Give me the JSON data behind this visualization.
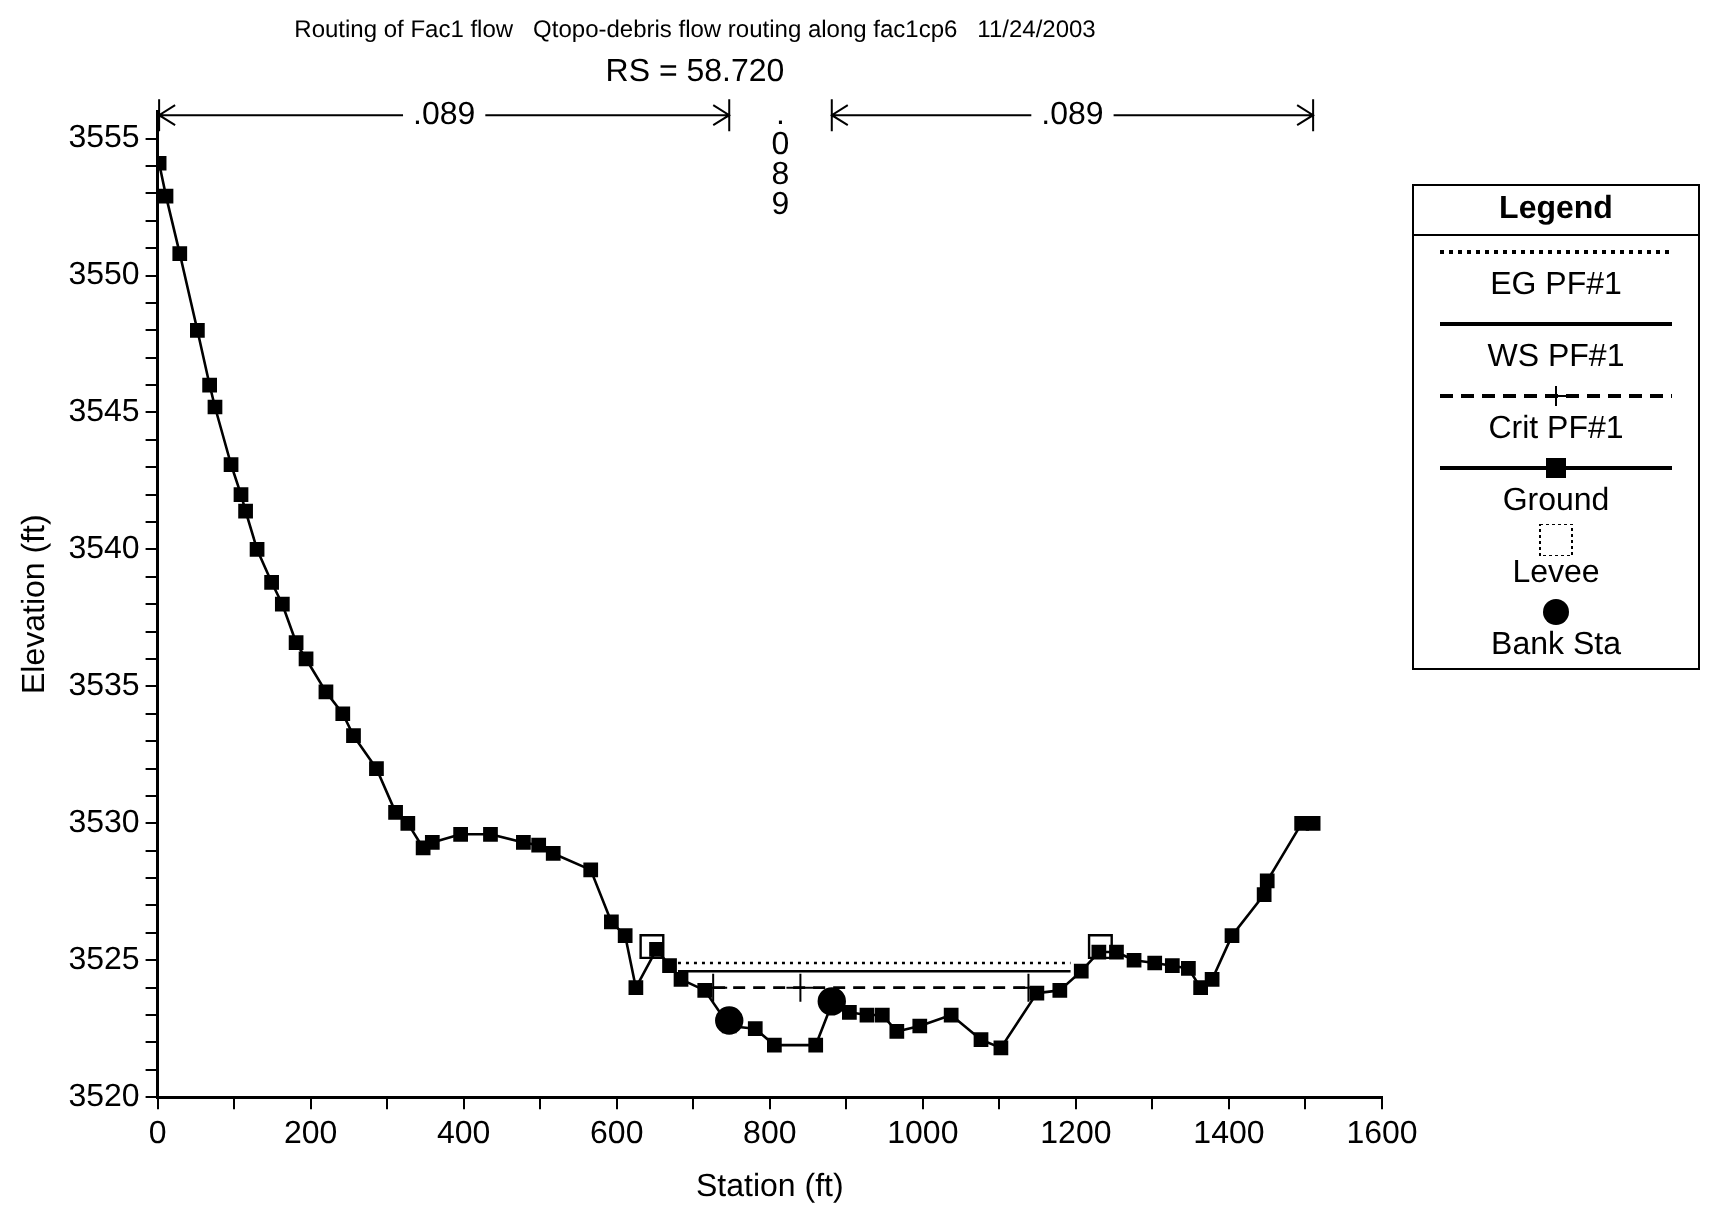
{
  "chart_data": {
    "type": "line",
    "title": "Routing of Fac1 flow   Qtopo-debris flow routing along fac1cp6   11/24/2003",
    "subtitle": "RS = 58.720",
    "xlabel": "Station (ft)",
    "ylabel": "Elevation (ft)",
    "legend_title": "Legend",
    "legend": "right",
    "grid": false,
    "xlim": [
      0,
      1600
    ],
    "ylim": [
      3520,
      3556
    ],
    "xticks": [
      0,
      {
        "value": 100,
        "label": null
      },
      200,
      {
        "value": 300,
        "label": null
      },
      400,
      {
        "value": 500,
        "label": null
      },
      600,
      {
        "value": 700,
        "label": null
      },
      800,
      {
        "value": 900,
        "label": null
      },
      1000,
      {
        "value": 1100,
        "label": null
      },
      1200,
      {
        "value": 1300,
        "label": null
      },
      1400,
      {
        "value": 1500,
        "label": null
      },
      1600
    ],
    "yticks": [
      3520,
      {
        "value": 3521,
        "label": null
      },
      {
        "value": 3522,
        "label": null
      },
      {
        "value": 3523,
        "label": null
      },
      {
        "value": 3524,
        "label": null
      },
      3525,
      {
        "value": 3526,
        "label": null
      },
      {
        "value": 3527,
        "label": null
      },
      {
        "value": 3528,
        "label": null
      },
      {
        "value": 3529,
        "label": null
      },
      3530,
      {
        "value": 3531,
        "label": null
      },
      {
        "value": 3532,
        "label": null
      },
      {
        "value": 3533,
        "label": null
      },
      {
        "value": 3534,
        "label": null
      },
      3535,
      {
        "value": 3536,
        "label": null
      },
      {
        "value": 3537,
        "label": null
      },
      {
        "value": 3538,
        "label": null
      },
      {
        "value": 3539,
        "label": null
      },
      3540,
      {
        "value": 3541,
        "label": null
      },
      {
        "value": 3542,
        "label": null
      },
      {
        "value": 3543,
        "label": null
      },
      {
        "value": 3544,
        "label": null
      },
      3545,
      {
        "value": 3546,
        "label": null
      },
      {
        "value": 3547,
        "label": null
      },
      {
        "value": 3548,
        "label": null
      },
      {
        "value": 3549,
        "label": null
      },
      3550,
      {
        "value": 3551,
        "label": null
      },
      {
        "value": 3552,
        "label": null
      },
      {
        "value": 3553,
        "label": null
      },
      {
        "value": 3554,
        "label": null
      },
      3555
    ],
    "annotations": [
      ".089",
      ".089",
      ".089"
    ],
    "series": [
      {
        "name": "EG PF#1",
        "color": "#000000",
        "line_style": "dotted",
        "marker": "none",
        "x": [
          680,
          1193
        ],
        "values": [
          3524.9,
          3524.9
        ]
      },
      {
        "name": "WS PF#1",
        "color": "#000000",
        "line_style": "solid",
        "marker": "none",
        "x": [
          680,
          1193
        ],
        "values": [
          3524.6,
          3524.6
        ]
      },
      {
        "name": "Crit PF#1",
        "color": "#000000",
        "line_style": "dashed",
        "marker": "cross",
        "x": [
          726,
          840,
          1138
        ],
        "values": [
          3524.0,
          3524.0,
          3524.0
        ]
      },
      {
        "name": "Ground",
        "color": "#000000",
        "line_style": "solid",
        "marker": "square",
        "x": [
          2,
          11,
          29,
          52,
          68,
          75,
          96,
          109,
          115,
          130,
          149,
          163,
          181,
          194,
          220,
          242,
          256,
          286,
          311,
          327,
          347,
          359,
          396,
          435,
          478,
          498,
          517,
          566,
          593,
          611,
          625,
          652,
          669,
          684,
          715,
          747,
          781,
          806,
          860,
          881,
          904,
          927,
          947,
          966,
          996,
          1037,
          1076,
          1102,
          1149,
          1179,
          1207,
          1230,
          1253,
          1276,
          1303,
          1326,
          1347,
          1363,
          1378,
          1404,
          1446,
          1450,
          1495,
          1510
        ],
        "values": [
          3554.1,
          3552.9,
          3550.8,
          3548.0,
          3546.0,
          3545.2,
          3543.1,
          3542.0,
          3541.4,
          3540.0,
          3538.8,
          3538.0,
          3536.6,
          3536.0,
          3534.8,
          3534.0,
          3533.2,
          3532.0,
          3530.4,
          3530.0,
          3529.1,
          3529.3,
          3529.6,
          3529.6,
          3529.3,
          3529.2,
          3528.9,
          3528.3,
          3526.4,
          3525.9,
          3524.0,
          3525.4,
          3524.8,
          3524.3,
          3523.9,
          3522.6,
          3522.5,
          3521.9,
          3521.9,
          3523.4,
          3523.1,
          3523.0,
          3523.0,
          3522.4,
          3522.6,
          3523.0,
          3522.1,
          3521.8,
          3523.8,
          3523.9,
          3524.6,
          3525.3,
          3525.3,
          3525.0,
          3524.9,
          3524.8,
          3524.7,
          3524.0,
          3524.3,
          3525.9,
          3527.4,
          3527.9,
          3530.0,
          3530.0
        ]
      },
      {
        "name": "Levee",
        "type": "scatter",
        "color": "#000000",
        "marker": "square",
        "x": [
          646,
          1232
        ],
        "values": [
          3525.5,
          3525.5
        ]
      },
      {
        "name": "Bank Sta",
        "type": "scatter",
        "color": "#000000",
        "marker": "circle",
        "x": [
          747,
          881
        ],
        "values": [
          3522.8,
          3523.5
        ]
      }
    ]
  }
}
